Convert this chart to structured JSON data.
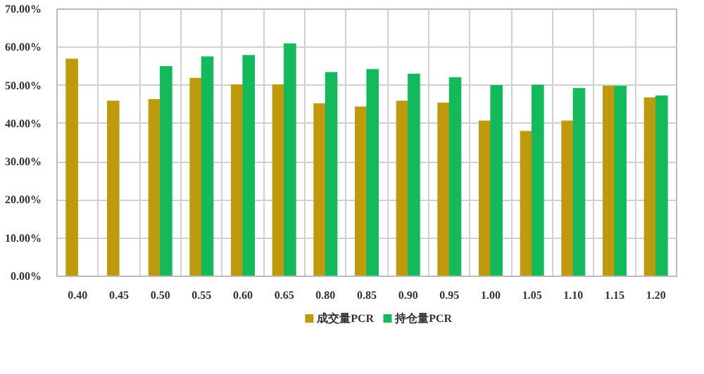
{
  "chart_data": {
    "type": "bar",
    "categories": [
      "0.40",
      "0.45",
      "0.50",
      "0.55",
      "0.60",
      "0.65",
      "0.80",
      "0.85",
      "0.90",
      "0.95",
      "1.00",
      "1.05",
      "1.10",
      "1.15",
      "1.20"
    ],
    "series": [
      {
        "name": "成交量PCR",
        "color": "#bf9a0c",
        "values": [
          57.0,
          46.0,
          46.4,
          52.0,
          50.3,
          50.3,
          45.3,
          44.5,
          46.0,
          45.5,
          40.8,
          38.1,
          40.8,
          49.9,
          46.9
        ]
      },
      {
        "name": "持仓量PCR",
        "color": "#13b95b",
        "values": [
          null,
          null,
          55.1,
          57.6,
          58.0,
          61.0,
          53.5,
          54.3,
          53.1,
          52.2,
          50.1,
          50.2,
          49.3,
          49.9,
          47.4
        ]
      }
    ],
    "ylim": [
      0,
      70
    ],
    "yticks": [
      {
        "value": 0,
        "label": "0.00%"
      },
      {
        "value": 10,
        "label": "10.00%"
      },
      {
        "value": 20,
        "label": "20.00%"
      },
      {
        "value": 30,
        "label": "30.00%"
      },
      {
        "value": 40,
        "label": "40.00%"
      },
      {
        "value": 50,
        "label": "50.00%"
      },
      {
        "value": 60,
        "label": "60.00%"
      },
      {
        "value": 70,
        "label": "70.00%"
      }
    ],
    "grid": true,
    "legend": "bottom"
  }
}
